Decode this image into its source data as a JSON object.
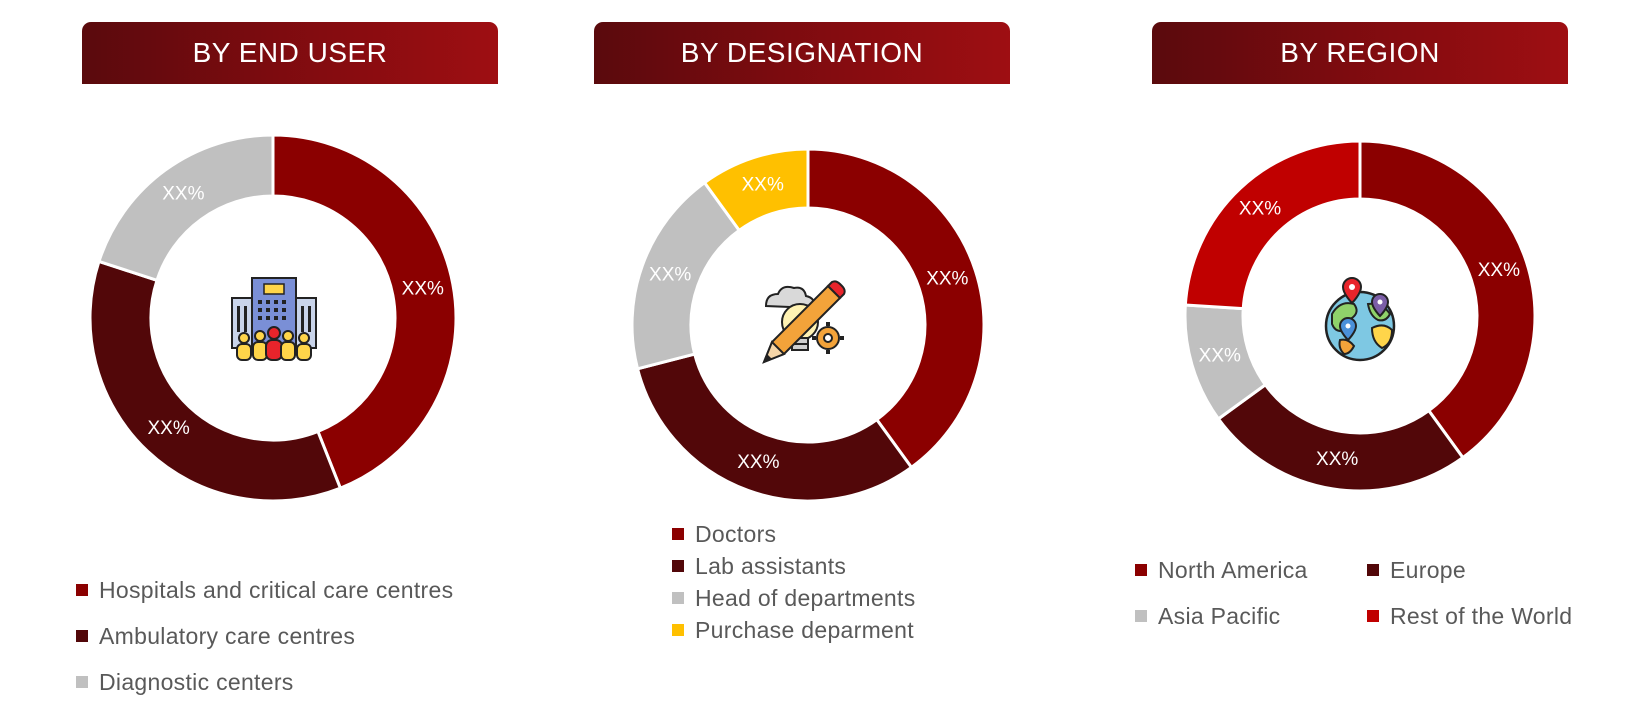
{
  "panels": {
    "end_user": {
      "title": "BY END USER"
    },
    "designation": {
      "title": "BY DESIGNATION"
    },
    "region": {
      "title": "BY REGION"
    }
  },
  "chart_data": [
    {
      "type": "pie",
      "variant": "donut",
      "title": "BY END USER",
      "categories": [
        "Hospitals and critical care centres",
        "Ambulatory care centres",
        "Diagnostic centers"
      ],
      "values": [
        44,
        36,
        20
      ],
      "labels": [
        "XX%",
        "XX%",
        "XX%"
      ],
      "colors": [
        "#8b0000",
        "#520709",
        "#c0c0c0"
      ],
      "legend": "bottom",
      "center_icon": "hospital-building-people-icon"
    },
    {
      "type": "pie",
      "variant": "donut",
      "title": "BY DESIGNATION",
      "categories": [
        "Doctors",
        "Lab assistants",
        "Head of departments",
        "Purchase deparment"
      ],
      "values": [
        40,
        31,
        19,
        10
      ],
      "labels": [
        "XX%",
        "XX%",
        "XX%",
        "XX%"
      ],
      "colors": [
        "#8b0000",
        "#520709",
        "#c0c0c0",
        "#ffc000"
      ],
      "legend": "bottom",
      "center_icon": "idea-pencil-gear-icon"
    },
    {
      "type": "pie",
      "variant": "donut",
      "title": "BY REGION",
      "categories": [
        "North America",
        "Europe",
        "Asia Pacific",
        "Rest of the World"
      ],
      "values": [
        40,
        25,
        11,
        24
      ],
      "labels": [
        "XX%",
        "XX%",
        "XX%",
        "XX%"
      ],
      "colors": [
        "#8b0000",
        "#520709",
        "#c0c0c0",
        "#c00000"
      ],
      "legend": "bottom",
      "center_icon": "globe-location-pins-icon"
    }
  ]
}
